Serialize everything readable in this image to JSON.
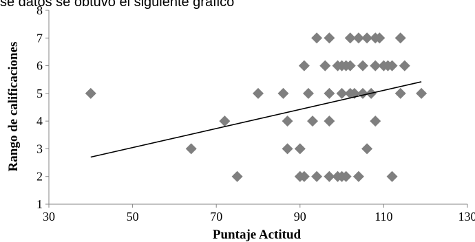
{
  "caption": "se datos se obtuvo el siguiente grafico",
  "chart_data": {
    "type": "scatter",
    "title": "",
    "xlabel": "Puntaje Actitud",
    "ylabel": "Rango de calificaciones",
    "xlim": [
      30,
      130
    ],
    "ylim": [
      1,
      8
    ],
    "xticks": [
      30,
      50,
      70,
      90,
      110,
      130
    ],
    "yticks": [
      1,
      2,
      3,
      4,
      5,
      6,
      7,
      8
    ],
    "marker": "diamond",
    "marker_color": "#7f7f7f",
    "trendline": {
      "type": "linear",
      "x": [
        40,
        119
      ],
      "y": [
        2.7,
        5.42
      ],
      "color": "#000000"
    },
    "points": [
      [
        40,
        5
      ],
      [
        64,
        3
      ],
      [
        72,
        4
      ],
      [
        75,
        2
      ],
      [
        80,
        5
      ],
      [
        86,
        5
      ],
      [
        87,
        4
      ],
      [
        87,
        3
      ],
      [
        90,
        3
      ],
      [
        90,
        2
      ],
      [
        91,
        2
      ],
      [
        91,
        6
      ],
      [
        92,
        5
      ],
      [
        93,
        4
      ],
      [
        94,
        7
      ],
      [
        94,
        2
      ],
      [
        96,
        6
      ],
      [
        97,
        7
      ],
      [
        97,
        5
      ],
      [
        97,
        4
      ],
      [
        97,
        2
      ],
      [
        99,
        6
      ],
      [
        99,
        2
      ],
      [
        100,
        6
      ],
      [
        100,
        5
      ],
      [
        100,
        2
      ],
      [
        101,
        6
      ],
      [
        101,
        2
      ],
      [
        102,
        7
      ],
      [
        102,
        6
      ],
      [
        102,
        5
      ],
      [
        103,
        5
      ],
      [
        104,
        7
      ],
      [
        104,
        2
      ],
      [
        105,
        6
      ],
      [
        105,
        5
      ],
      [
        106,
        7
      ],
      [
        106,
        3
      ],
      [
        107,
        5
      ],
      [
        108,
        7
      ],
      [
        108,
        6
      ],
      [
        108,
        4
      ],
      [
        109,
        7
      ],
      [
        110,
        6
      ],
      [
        111,
        6
      ],
      [
        112,
        6
      ],
      [
        112,
        2
      ],
      [
        114,
        7
      ],
      [
        114,
        5
      ],
      [
        115,
        6
      ],
      [
        119,
        5
      ]
    ]
  }
}
